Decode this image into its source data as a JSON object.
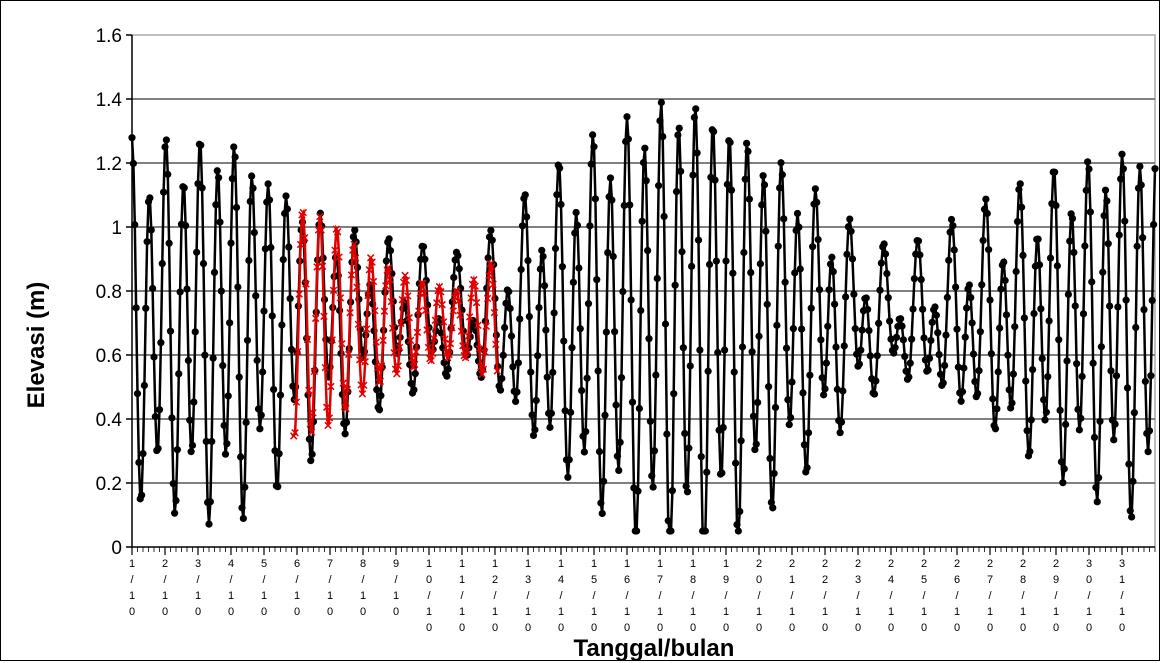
{
  "chart_data": {
    "type": "line",
    "xlabel": "Tanggal/bulan",
    "ylabel": "Elevasi (m)",
    "ylim": [
      0,
      1.6
    ],
    "yticks": [
      0,
      0.2,
      0.4,
      0.6,
      0.8,
      1,
      1.2,
      1.4,
      1.6
    ],
    "yticklabels": [
      "0",
      "0.2",
      "0.4",
      "0.6",
      "0.8",
      "1",
      "1.2",
      "1.4",
      "1.6"
    ],
    "xlim": [
      1,
      32
    ],
    "x_day_labels": [
      "1/10",
      "2/10",
      "3/10",
      "4/10",
      "5/10",
      "6/10",
      "7/10",
      "8/10",
      "9/10",
      "10/10",
      "11/10",
      "12/10",
      "13/10",
      "14/10",
      "15/10",
      "16/10",
      "17/10",
      "18/10",
      "19/10",
      "20/10",
      "21/10",
      "22/10",
      "23/10",
      "24/10",
      "25/10",
      "26/10",
      "27/10",
      "28/10",
      "29/10",
      "30/10",
      "31/10"
    ],
    "grid": "horizontal major",
    "legend": "none",
    "series": [
      {
        "color": "#000000",
        "marker": "circle",
        "hourly_samples_per_day": 24,
        "semidiurnal_amplitude_envelope": [
          [
            1,
            0.48
          ],
          [
            4,
            0.53
          ],
          [
            6,
            0.35
          ],
          [
            8,
            0.2
          ],
          [
            10,
            0.13
          ],
          [
            11,
            0.1
          ],
          [
            12,
            0.18
          ],
          [
            13,
            0.3
          ],
          [
            15,
            0.5
          ],
          [
            17,
            0.64
          ],
          [
            18,
            0.66
          ],
          [
            19,
            0.6
          ],
          [
            21,
            0.42
          ],
          [
            23,
            0.2
          ],
          [
            24,
            0.12
          ],
          [
            25,
            0.15
          ],
          [
            27,
            0.28
          ],
          [
            29,
            0.4
          ],
          [
            32,
            0.53
          ]
        ],
        "diurnal_amplitude_envelope": [
          [
            1,
            0.12
          ],
          [
            32,
            0.12
          ]
        ],
        "mean_level": 0.7
      },
      {
        "color": "#e00000",
        "marker": "x",
        "x_range": [
          5.9,
          12.1
        ],
        "hourly_samples_per_day": 24,
        "semidiurnal_amplitude_envelope": [
          [
            6,
            0.36
          ],
          [
            7,
            0.32
          ],
          [
            8,
            0.22
          ],
          [
            9,
            0.16
          ],
          [
            10,
            0.12
          ],
          [
            11,
            0.1
          ],
          [
            12,
            0.2
          ]
        ],
        "mean_level": 0.7
      }
    ]
  }
}
